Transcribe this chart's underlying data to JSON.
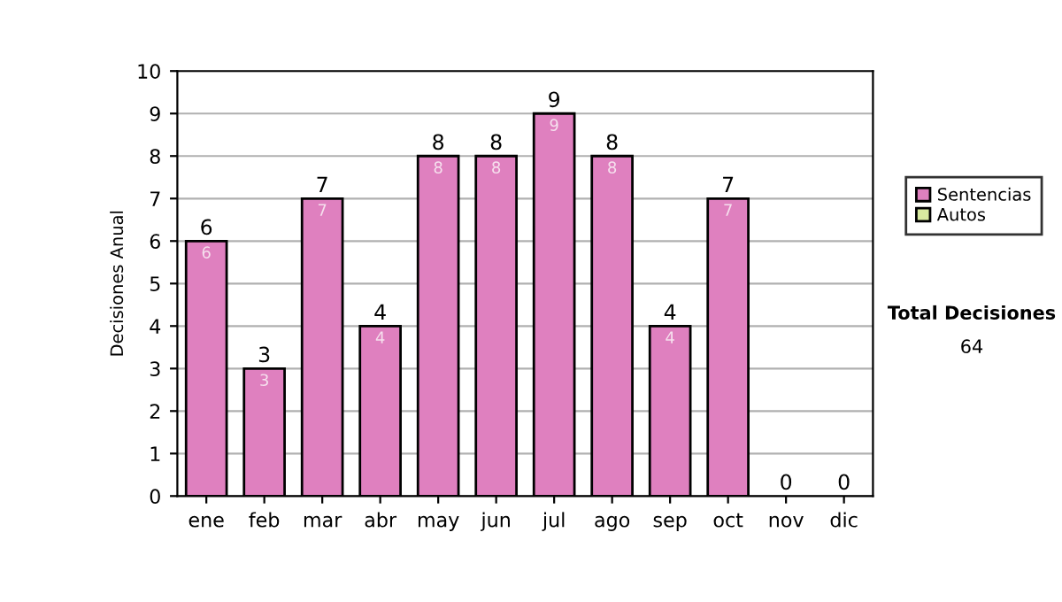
{
  "chart_data": {
    "type": "bar",
    "stacked": true,
    "ylabel": "Decisiones Anual",
    "categories": [
      "ene",
      "feb",
      "mar",
      "abr",
      "may",
      "jun",
      "jul",
      "ago",
      "sep",
      "oct",
      "nov",
      "dic"
    ],
    "series": [
      {
        "name": "Sentencias",
        "color": "#df80bf",
        "values": [
          6,
          3,
          7,
          4,
          8,
          8,
          9,
          8,
          4,
          7,
          0,
          0
        ],
        "value_labels": [
          "6",
          "3",
          "7",
          "4",
          "8",
          "8",
          "9",
          "8",
          "4",
          "7",
          null,
          null
        ]
      },
      {
        "name": "Autos",
        "color": "#d8eaa0",
        "values": [
          0,
          0,
          0,
          0,
          0,
          0,
          0,
          0,
          0,
          0,
          0,
          0
        ]
      }
    ],
    "totals": [
      "6",
      "3",
      "7",
      "4",
      "8",
      "8",
      "9",
      "8",
      "4",
      "7",
      "0",
      "0"
    ],
    "ylim": [
      0,
      10
    ],
    "yticks": [
      0,
      1,
      2,
      3,
      4,
      5,
      6,
      7,
      8,
      9,
      10
    ],
    "grid": "y",
    "legend": "right",
    "annotations": [
      "Total Decisiones",
      "64"
    ]
  }
}
